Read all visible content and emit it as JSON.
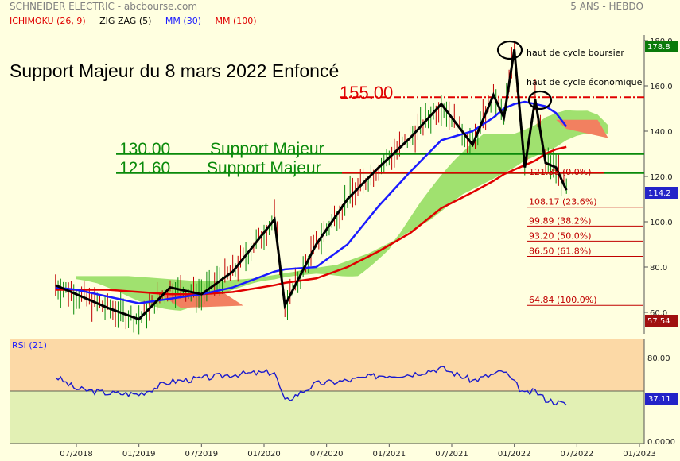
{
  "header": {
    "title": "SCHNEIDER ELECTRIC - abcbourse.com",
    "period": "5 ANS - HEBDO",
    "legend": [
      {
        "label": "ICHIMOKU (26, 9)",
        "color": "#e00000"
      },
      {
        "label": "ZIG ZAG (5)",
        "color": "#000000"
      },
      {
        "label": "MM (30)",
        "color": "#1a1aff"
      },
      {
        "label": "MM (100)",
        "color": "#e00000"
      }
    ]
  },
  "annotations": {
    "main_title": "Support Majeur du 8 mars 2022 Enfoncé",
    "level_155": "155.00",
    "support1_value": "130.00",
    "support1_label": "Support Majeur",
    "support2_value": "121.60",
    "support2_label": "Support Majeur",
    "cycle_top_market": "haut de cycle boursier",
    "cycle_top_economic": "haut de cycle économique"
  },
  "price_axis": {
    "ticks": [
      "180.0",
      "160.0",
      "140.0",
      "120.0",
      "100.0",
      "80.0",
      "60.0"
    ],
    "last_price": "114.2",
    "top_value": "178.8",
    "low_value": "57.54"
  },
  "fibonacci": [
    {
      "price": 121.38,
      "label": "121.38 (0.0%)"
    },
    {
      "price": 108.17,
      "label": "108.17 (23.6%)"
    },
    {
      "price": 99.89,
      "label": "99.89 (38.2%)"
    },
    {
      "price": 93.2,
      "label": "93.20 (50.0%)"
    },
    {
      "price": 86.5,
      "label": "86.50 (61.8%)"
    },
    {
      "price": 64.84,
      "label": "64.84 (100.0%)"
    }
  ],
  "rsi": {
    "label": "RSI (21)",
    "ticks": [
      "80.00",
      "0.0000"
    ],
    "value": "37.11"
  },
  "time_axis": {
    "labels": [
      "07/2018",
      "01/2019",
      "07/2019",
      "01/2020",
      "07/2020",
      "01/2021",
      "07/2021",
      "01/2022",
      "07/2022",
      "01/2023"
    ]
  },
  "chart_data": [
    {
      "type": "line",
      "title": "SCHNEIDER ELECTRIC - abcbourse.com",
      "x": [
        "05/2018",
        "07/2018",
        "10/2018",
        "01/2019",
        "04/2019",
        "07/2019",
        "10/2019",
        "02/2020",
        "03/2020",
        "06/2020",
        "09/2020",
        "12/2020",
        "03/2021",
        "06/2021",
        "09/2021",
        "11/2021",
        "12/2021",
        "01/2022",
        "02/2022",
        "03/2022",
        "04/2022",
        "05/2022",
        "06/2022"
      ],
      "series": [
        {
          "name": "ZIG ZAG (5)",
          "values": [
            72,
            68,
            62,
            57,
            71,
            68,
            78,
            101,
            63,
            90,
            110,
            124,
            137,
            152,
            134,
            156,
            146,
            176,
            124,
            154,
            126,
            124,
            114
          ]
        },
        {
          "name": "MM (30)",
          "values": [
            71,
            70,
            67,
            64,
            66,
            68,
            71,
            78,
            79,
            80,
            90,
            107,
            122,
            136,
            140,
            146,
            150,
            152,
            153,
            152,
            151,
            148,
            142
          ]
        },
        {
          "name": "MM (100)",
          "values": [
            70,
            70,
            70,
            69,
            68,
            68,
            69,
            72,
            73,
            75,
            80,
            87,
            95,
            106,
            113,
            118,
            121,
            123,
            125,
            127,
            130,
            132,
            133
          ]
        }
      ],
      "levels": [
        155.0,
        130.0,
        121.6
      ],
      "ylim": [
        55,
        185
      ]
    },
    {
      "type": "line",
      "title": "RSI (21)",
      "x": [
        "05/2018",
        "07/2018",
        "10/2018",
        "01/2019",
        "04/2019",
        "07/2019",
        "10/2019",
        "02/2020",
        "03/2020",
        "06/2020",
        "09/2020",
        "12/2020",
        "03/2021",
        "06/2021",
        "09/2021",
        "12/2021",
        "02/2022",
        "03/2022",
        "04/2022",
        "06/2022"
      ],
      "series": [
        {
          "name": "RSI (21)",
          "values": [
            62,
            50,
            46,
            45,
            57,
            60,
            64,
            66,
            38,
            55,
            58,
            63,
            64,
            70,
            58,
            67,
            45,
            48,
            40,
            35
          ]
        }
      ],
      "ylim": [
        0,
        100
      ]
    }
  ]
}
